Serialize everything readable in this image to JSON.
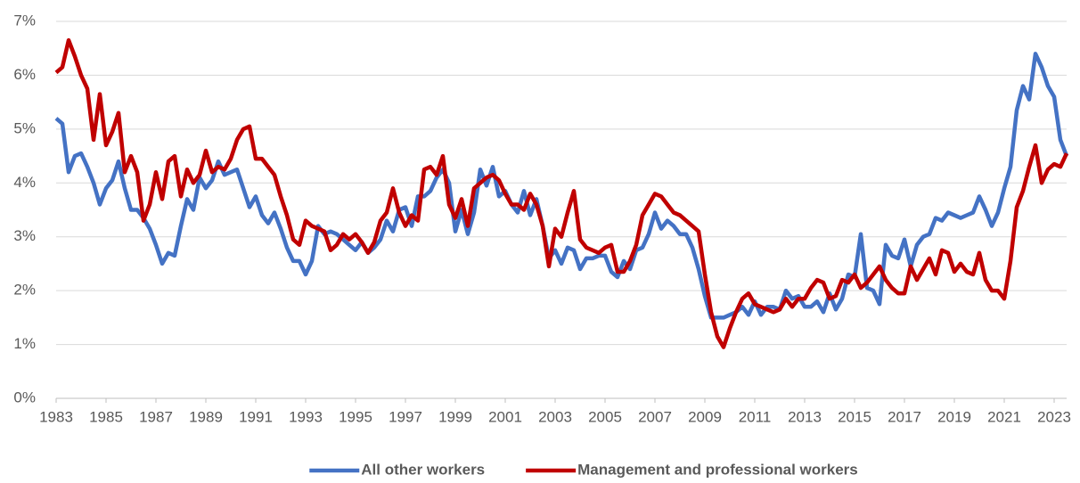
{
  "chart_data": {
    "type": "line",
    "x": [
      1983,
      1983.25,
      1983.5,
      1983.75,
      1984,
      1984.25,
      1984.5,
      1984.75,
      1985,
      1985.25,
      1985.5,
      1985.75,
      1986,
      1986.25,
      1986.5,
      1986.75,
      1987,
      1987.25,
      1987.5,
      1987.75,
      1988,
      1988.25,
      1988.5,
      1988.75,
      1989,
      1989.25,
      1989.5,
      1989.75,
      1990,
      1990.25,
      1990.5,
      1990.75,
      1991,
      1991.25,
      1991.5,
      1991.75,
      1992,
      1992.25,
      1992.5,
      1992.75,
      1993,
      1993.25,
      1993.5,
      1993.75,
      1994,
      1994.25,
      1994.5,
      1994.75,
      1995,
      1995.25,
      1995.5,
      1995.75,
      1996,
      1996.25,
      1996.5,
      1996.75,
      1997,
      1997.25,
      1997.5,
      1997.75,
      1998,
      1998.25,
      1998.5,
      1998.75,
      1999,
      1999.25,
      1999.5,
      1999.75,
      2000,
      2000.25,
      2000.5,
      2000.75,
      2001,
      2001.25,
      2001.5,
      2001.75,
      2002,
      2002.25,
      2002.5,
      2002.75,
      2003,
      2003.25,
      2003.5,
      2003.75,
      2004,
      2004.25,
      2004.5,
      2004.75,
      2005,
      2005.25,
      2005.5,
      2005.75,
      2006,
      2006.25,
      2006.5,
      2006.75,
      2007,
      2007.25,
      2007.5,
      2007.75,
      2008,
      2008.25,
      2008.5,
      2008.75,
      2009,
      2009.25,
      2009.5,
      2009.75,
      2010,
      2010.25,
      2010.5,
      2010.75,
      2011,
      2011.25,
      2011.5,
      2011.75,
      2012,
      2012.25,
      2012.5,
      2012.75,
      2013,
      2013.25,
      2013.5,
      2013.75,
      2014,
      2014.25,
      2014.5,
      2014.75,
      2015,
      2015.25,
      2015.5,
      2015.75,
      2016,
      2016.25,
      2016.5,
      2016.75,
      2017,
      2017.25,
      2017.5,
      2017.75,
      2018,
      2018.25,
      2018.5,
      2018.75,
      2019,
      2019.25,
      2019.5,
      2019.75,
      2020,
      2020.25,
      2020.5,
      2020.75,
      2021,
      2021.25,
      2021.5,
      2021.75,
      2022,
      2022.25,
      2022.5,
      2022.75,
      2023,
      2023.25,
      2023.5
    ],
    "series": [
      {
        "name": "All other workers",
        "color": "#4472c4",
        "values": [
          5.2,
          5.1,
          4.2,
          4.5,
          4.55,
          4.3,
          4.0,
          3.6,
          3.9,
          4.05,
          4.4,
          3.9,
          3.5,
          3.5,
          3.35,
          3.15,
          2.85,
          2.5,
          2.7,
          2.65,
          3.2,
          3.7,
          3.5,
          4.1,
          3.9,
          4.05,
          4.4,
          4.15,
          4.2,
          4.25,
          3.9,
          3.55,
          3.75,
          3.4,
          3.25,
          3.45,
          3.15,
          2.8,
          2.55,
          2.55,
          2.3,
          2.55,
          3.2,
          3.05,
          3.1,
          3.05,
          2.95,
          2.85,
          2.75,
          2.9,
          2.7,
          2.8,
          2.95,
          3.3,
          3.1,
          3.5,
          3.55,
          3.2,
          3.75,
          3.75,
          3.85,
          4.1,
          4.25,
          4.0,
          3.1,
          3.5,
          3.05,
          3.45,
          4.25,
          3.95,
          4.3,
          3.75,
          3.85,
          3.6,
          3.45,
          3.85,
          3.4,
          3.7,
          3.2,
          2.6,
          2.75,
          2.5,
          2.8,
          2.75,
          2.4,
          2.6,
          2.6,
          2.65,
          2.65,
          2.35,
          2.25,
          2.55,
          2.4,
          2.75,
          2.8,
          3.05,
          3.45,
          3.15,
          3.3,
          3.2,
          3.05,
          3.05,
          2.8,
          2.4,
          1.9,
          1.5,
          1.5,
          1.5,
          1.55,
          1.6,
          1.7,
          1.55,
          1.8,
          1.55,
          1.7,
          1.7,
          1.65,
          2.0,
          1.85,
          1.9,
          1.7,
          1.7,
          1.8,
          1.6,
          1.95,
          1.65,
          1.85,
          2.3,
          2.25,
          3.05,
          2.05,
          2.0,
          1.75,
          2.85,
          2.65,
          2.6,
          2.95,
          2.45,
          2.85,
          3.0,
          3.05,
          3.35,
          3.3,
          3.45,
          3.4,
          3.35,
          3.4,
          3.45,
          3.75,
          3.5,
          3.2,
          3.45,
          3.9,
          4.3,
          5.35,
          5.8,
          5.55,
          6.4,
          6.15,
          5.8,
          5.6,
          4.8,
          4.5
        ]
      },
      {
        "name": "Management and professional workers",
        "color": "#c00000",
        "values": [
          6.05,
          6.15,
          6.65,
          6.35,
          6.0,
          5.75,
          4.8,
          5.65,
          4.7,
          4.95,
          5.3,
          4.2,
          4.5,
          4.2,
          3.3,
          3.6,
          4.2,
          3.7,
          4.4,
          4.5,
          3.75,
          4.25,
          4.0,
          4.15,
          4.6,
          4.2,
          4.3,
          4.25,
          4.45,
          4.8,
          5.0,
          5.05,
          4.45,
          4.45,
          4.3,
          4.15,
          3.75,
          3.4,
          2.95,
          2.85,
          3.3,
          3.2,
          3.15,
          3.1,
          2.75,
          2.85,
          3.05,
          2.95,
          3.05,
          2.9,
          2.7,
          2.9,
          3.3,
          3.45,
          3.9,
          3.45,
          3.2,
          3.4,
          3.3,
          4.25,
          4.3,
          4.15,
          4.5,
          3.6,
          3.35,
          3.7,
          3.2,
          3.9,
          4.0,
          4.1,
          4.15,
          4.05,
          3.8,
          3.6,
          3.6,
          3.5,
          3.8,
          3.6,
          3.2,
          2.45,
          3.15,
          3.0,
          3.45,
          3.85,
          2.95,
          2.8,
          2.75,
          2.7,
          2.8,
          2.85,
          2.35,
          2.35,
          2.55,
          2.85,
          3.4,
          3.6,
          3.8,
          3.75,
          3.6,
          3.45,
          3.4,
          3.3,
          3.2,
          3.1,
          2.3,
          1.6,
          1.15,
          0.95,
          1.3,
          1.6,
          1.85,
          1.95,
          1.75,
          1.7,
          1.65,
          1.6,
          1.65,
          1.85,
          1.7,
          1.85,
          1.85,
          2.05,
          2.2,
          2.15,
          1.85,
          1.9,
          2.2,
          2.15,
          2.3,
          2.05,
          2.15,
          2.3,
          2.45,
          2.2,
          2.05,
          1.95,
          1.95,
          2.45,
          2.2,
          2.4,
          2.6,
          2.3,
          2.75,
          2.7,
          2.35,
          2.5,
          2.35,
          2.3,
          2.7,
          2.2,
          2.0,
          2.0,
          1.85,
          2.55,
          3.55,
          3.85,
          4.3,
          4.7,
          4.0,
          4.25,
          4.35,
          4.3,
          4.55
        ]
      }
    ],
    "xlim": [
      1983,
      2023.5
    ],
    "xticks": [
      1983,
      1985,
      1987,
      1989,
      1991,
      1993,
      1995,
      1997,
      1999,
      2001,
      2003,
      2005,
      2007,
      2009,
      2011,
      2013,
      2015,
      2017,
      2019,
      2021,
      2023
    ],
    "ylim": [
      0,
      7
    ],
    "yticks": [
      {
        "value": 0,
        "label": "0%"
      },
      {
        "value": 1,
        "label": "1%"
      },
      {
        "value": 2,
        "label": "2%"
      },
      {
        "value": 3,
        "label": "3%"
      },
      {
        "value": 4,
        "label": "4%"
      },
      {
        "value": 5,
        "label": "5%"
      },
      {
        "value": 6,
        "label": "6%"
      },
      {
        "value": 7,
        "label": "7%"
      }
    ],
    "grid": true,
    "legend": "bottom"
  }
}
